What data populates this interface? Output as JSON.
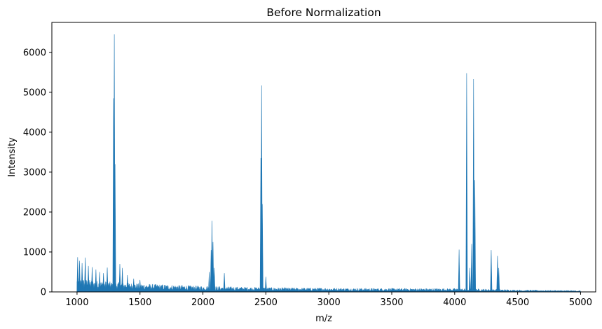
{
  "chart_data": {
    "type": "area",
    "title": "Before Normalization",
    "xlabel": "m/z",
    "ylabel": "Intensity",
    "xlim": [
      800,
      5120
    ],
    "ylim": [
      0,
      6750
    ],
    "xticks": [
      1000,
      1500,
      2000,
      2500,
      3000,
      3500,
      4000,
      4500,
      5000
    ],
    "yticks": [
      0,
      1000,
      2000,
      3000,
      4000,
      5000,
      6000
    ],
    "grid": false,
    "series": [
      {
        "color": "#1f77b4",
        "baseline": [
          [
            1000,
            350
          ],
          [
            1100,
            300
          ],
          [
            1200,
            270
          ],
          [
            1300,
            250
          ],
          [
            1500,
            210
          ],
          [
            1750,
            180
          ],
          [
            2000,
            150
          ],
          [
            2250,
            130
          ],
          [
            2500,
            115
          ],
          [
            2750,
            105
          ],
          [
            3000,
            100
          ],
          [
            3250,
            95
          ],
          [
            3500,
            92
          ],
          [
            3750,
            90
          ],
          [
            4000,
            88
          ],
          [
            4250,
            75
          ],
          [
            4500,
            55
          ],
          [
            4750,
            45
          ],
          [
            5000,
            35
          ]
        ],
        "peaks": [
          [
            1005,
            870
          ],
          [
            1020,
            780
          ],
          [
            1040,
            720
          ],
          [
            1065,
            860
          ],
          [
            1090,
            650
          ],
          [
            1120,
            620
          ],
          [
            1150,
            560
          ],
          [
            1180,
            500
          ],
          [
            1210,
            470
          ],
          [
            1240,
            610
          ],
          [
            1290,
            4850
          ],
          [
            1296,
            6450
          ],
          [
            1302,
            3200
          ],
          [
            1340,
            700
          ],
          [
            1360,
            600
          ],
          [
            1400,
            420
          ],
          [
            1450,
            330
          ],
          [
            1500,
            300
          ],
          [
            2050,
            500
          ],
          [
            2065,
            1050
          ],
          [
            2072,
            1780
          ],
          [
            2080,
            1250
          ],
          [
            2090,
            600
          ],
          [
            2170,
            470
          ],
          [
            2460,
            3350
          ],
          [
            2466,
            5170
          ],
          [
            2472,
            2200
          ],
          [
            2500,
            380
          ],
          [
            4035,
            1060
          ],
          [
            4095,
            5480
          ],
          [
            4120,
            600
          ],
          [
            4135,
            1200
          ],
          [
            4150,
            5330
          ],
          [
            4160,
            2800
          ],
          [
            4290,
            1050
          ],
          [
            4340,
            900
          ],
          [
            4350,
            600
          ]
        ]
      }
    ]
  }
}
